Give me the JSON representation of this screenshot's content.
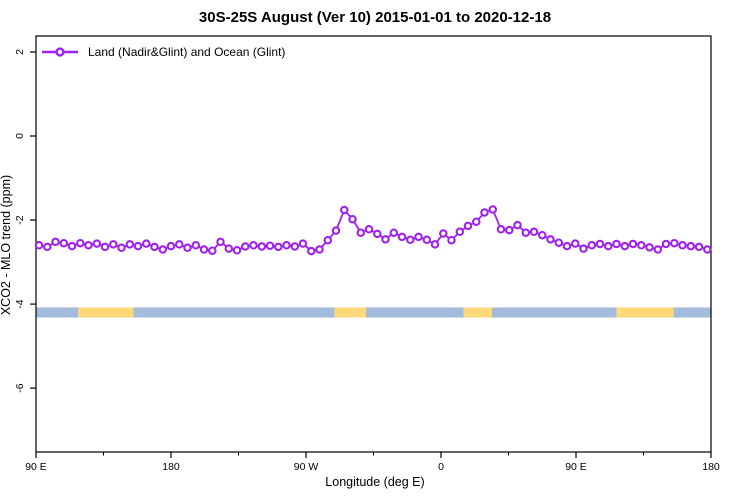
{
  "title": "30S-25S August (Ver 10)   2015-01-01 to 2020-12-18",
  "legend": {
    "label": "Land (Nadir&Glint) and Ocean (Glint)"
  },
  "axes": {
    "xlabel": "Longitude (deg E)",
    "ylabel": "XCO2 - MLO trend (ppm)"
  },
  "chart_data": {
    "type": "line",
    "title": "30S-25S August (Ver 10)   2015-01-01 to 2020-12-18",
    "xlabel": "Longitude (deg E)",
    "ylabel": "XCO2 - MLO trend (ppm)",
    "xlim": [
      90,
      540
    ],
    "ylim": [
      -7.52,
      2.38
    ],
    "grid": false,
    "legend_position": "top-left",
    "xticks": {
      "values": [
        90,
        180,
        270,
        360,
        450,
        540
      ],
      "labels": [
        "90 E",
        "180",
        "90 W",
        "0",
        "90 E",
        "180"
      ]
    },
    "xticks_minor": [
      135,
      225,
      315,
      405,
      495
    ],
    "yticks": {
      "values": [
        2,
        0,
        -2,
        -4,
        -6
      ],
      "labels": [
        "2",
        "0",
        "-2",
        "-4",
        "-6"
      ]
    },
    "series": [
      {
        "name": "Land (Nadir&Glint) and Ocean (Glint)",
        "color": "#A020F0",
        "marker": "open-circle",
        "x": [
          92,
          97.5,
          103,
          108.5,
          114,
          119.5,
          125,
          130.5,
          136,
          141.5,
          147,
          152.5,
          158,
          163.5,
          169,
          174.5,
          180,
          185.5,
          191,
          196.5,
          202,
          207.5,
          213,
          218.5,
          224,
          229.5,
          235,
          240.5,
          246,
          251.5,
          257,
          262.5,
          268,
          273.5,
          279,
          284.5,
          290,
          295.5,
          301,
          306.5,
          312,
          317.5,
          323,
          328.5,
          334,
          339.5,
          345,
          350.5,
          356,
          361.5,
          367,
          372.5,
          378,
          383.5,
          389,
          394.5,
          400,
          405.5,
          411,
          416.5,
          422,
          427.5,
          433,
          438.5,
          444,
          449.5,
          455,
          460.5,
          466,
          471.5,
          477,
          482.5,
          488,
          493.5,
          499,
          504.5,
          510,
          515.5,
          521,
          526.5,
          532,
          537.5
        ],
        "y": [
          -2.6,
          -2.64,
          -2.52,
          -2.55,
          -2.62,
          -2.55,
          -2.6,
          -2.56,
          -2.64,
          -2.58,
          -2.66,
          -2.58,
          -2.62,
          -2.56,
          -2.64,
          -2.7,
          -2.62,
          -2.58,
          -2.66,
          -2.6,
          -2.7,
          -2.73,
          -2.52,
          -2.68,
          -2.72,
          -2.63,
          -2.6,
          -2.63,
          -2.61,
          -2.64,
          -2.6,
          -2.63,
          -2.56,
          -2.74,
          -2.7,
          -2.48,
          -2.25,
          -1.76,
          -1.98,
          -2.3,
          -2.22,
          -2.33,
          -2.46,
          -2.3,
          -2.4,
          -2.47,
          -2.4,
          -2.47,
          -2.58,
          -2.32,
          -2.48,
          -2.28,
          -2.14,
          -2.04,
          -1.82,
          -1.75,
          -2.22,
          -2.24,
          -2.12,
          -2.3,
          -2.28,
          -2.36,
          -2.46,
          -2.54,
          -2.62,
          -2.56,
          -2.68,
          -2.6,
          -2.57,
          -2.62,
          -2.57,
          -2.62,
          -2.57,
          -2.6,
          -2.65,
          -2.7,
          -2.57,
          -2.55,
          -2.6,
          -2.62,
          -2.64,
          -2.7
        ]
      }
    ],
    "surface_band": {
      "y_top": -4.08,
      "y_bottom": -4.32,
      "colors": {
        "ocean": "#a3bbdc",
        "land": "#ffd97a"
      },
      "segments": [
        {
          "from": 90,
          "to": 118,
          "surface": "ocean"
        },
        {
          "from": 118,
          "to": 155,
          "surface": "land"
        },
        {
          "from": 155,
          "to": 289,
          "surface": "ocean"
        },
        {
          "from": 289,
          "to": 310,
          "surface": "land"
        },
        {
          "from": 310,
          "to": 375,
          "surface": "ocean"
        },
        {
          "from": 375,
          "to": 394,
          "surface": "land"
        },
        {
          "from": 394,
          "to": 477,
          "surface": "ocean"
        },
        {
          "from": 477,
          "to": 515,
          "surface": "land"
        },
        {
          "from": 515,
          "to": 540,
          "surface": "ocean"
        }
      ]
    }
  }
}
